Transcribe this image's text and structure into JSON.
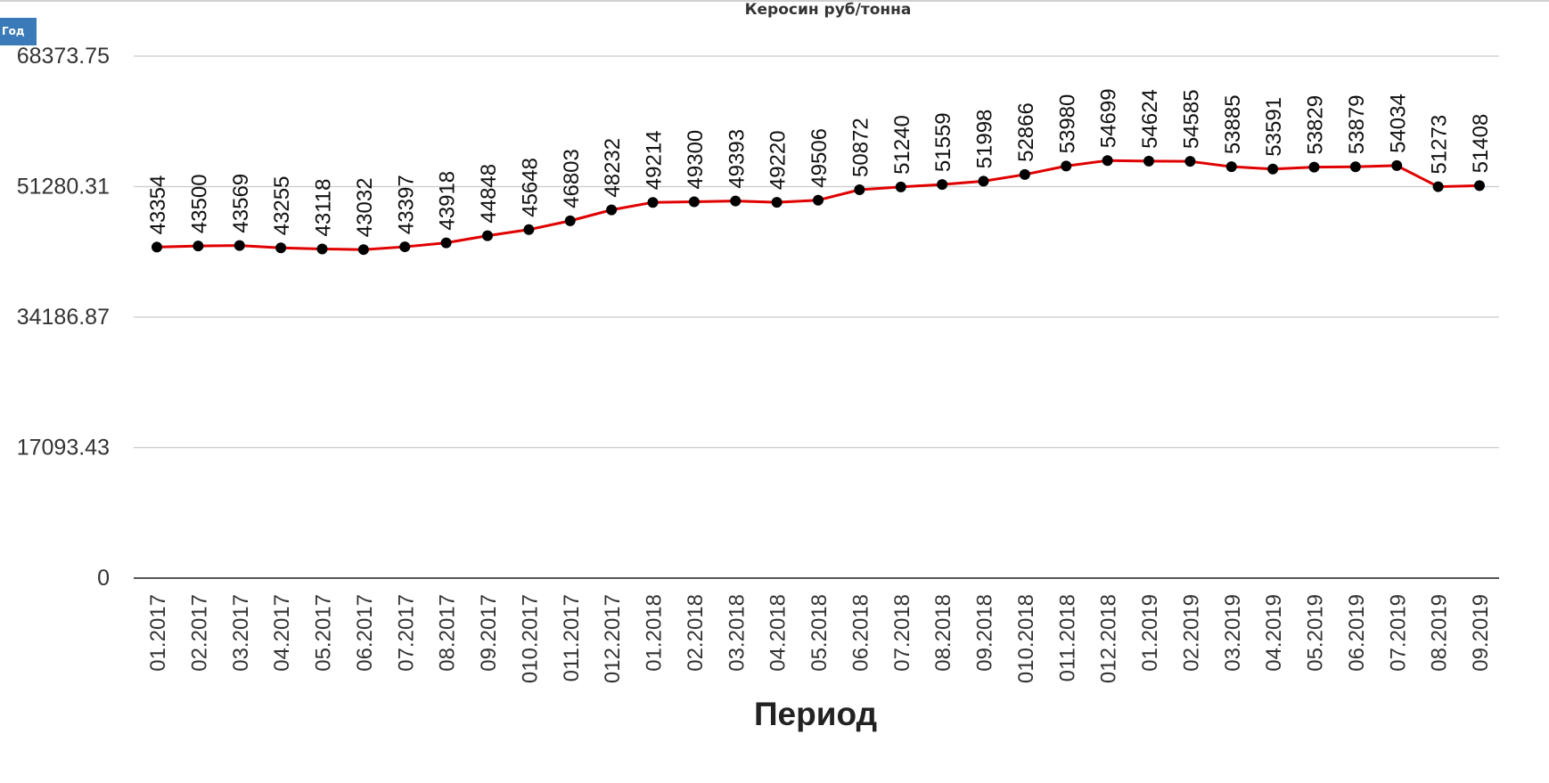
{
  "controls": {
    "period_button_label": "Год"
  },
  "chart_data": {
    "type": "line",
    "title": "Керосин руб/тонна",
    "xlabel": "Период",
    "ylabel": "",
    "ylim": [
      0,
      68373.75
    ],
    "yticks": [
      "0",
      "17093.43",
      "34186.87",
      "51280.31",
      "68373.75"
    ],
    "ytick_values": [
      0,
      17093.43,
      34186.87,
      51280.31,
      68373.75
    ],
    "grid": true,
    "categories": [
      "01.2017",
      "02.2017",
      "03.2017",
      "04.2017",
      "05.2017",
      "06.2017",
      "07.2017",
      "08.2017",
      "09.2017",
      "010.2017",
      "011.2017",
      "012.2017",
      "01.2018",
      "02.2018",
      "03.2018",
      "04.2018",
      "05.2018",
      "06.2018",
      "07.2018",
      "08.2018",
      "09.2018",
      "010.2018",
      "011.2018",
      "012.2018",
      "01.2019",
      "02.2019",
      "03.2019",
      "04.2019",
      "05.2019",
      "06.2019",
      "07.2019",
      "08.2019",
      "09.2019"
    ],
    "series": [
      {
        "values": [
          43354,
          43500,
          43569,
          43255,
          43118,
          43032,
          43397,
          43918,
          44848,
          45648,
          46803,
          48232,
          49214,
          49300,
          49393,
          49220,
          49506,
          50872,
          51240,
          51559,
          51998,
          52866,
          53980,
          54699,
          54624,
          54585,
          53885,
          53591,
          53829,
          53879,
          54034,
          51273,
          51408
        ],
        "color": "#e00000"
      }
    ],
    "marker_color": "#000000"
  }
}
